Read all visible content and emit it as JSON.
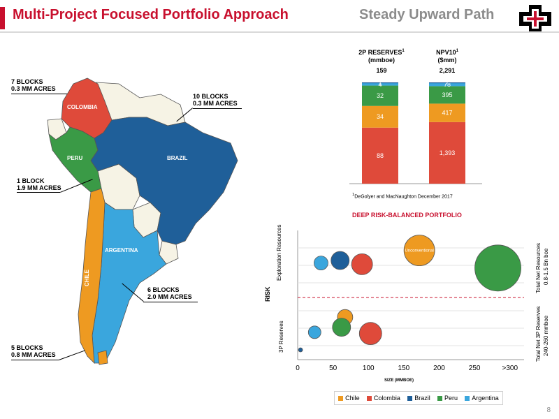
{
  "header": {
    "title": "Multi-Project Focused Portfolio Approach",
    "subtitle": "Steady Upward Path"
  },
  "colors": {
    "chile": "#ee9a21",
    "colombia": "#df4a3a",
    "brazil": "#1f5f99",
    "peru": "#3a9a46",
    "argentina": "#3aa6dd",
    "other": "#f6f3e5",
    "accent": "#c8102e"
  },
  "map": {
    "countries": {
      "colombia": "COLOMBIA",
      "peru": "PERU",
      "brazil": "BRAZIL",
      "argentina": "ARGENTINA",
      "chile": "CHILE"
    },
    "callouts": [
      {
        "blocks": "7 BLOCKS",
        "acres": "0.3 MM ACRES"
      },
      {
        "blocks": "10 BLOCKS",
        "acres": "0.3 MM ACRES"
      },
      {
        "blocks": "1 BLOCK",
        "acres": "1.9 MM ACRES"
      },
      {
        "blocks": "6 BLOCKS",
        "acres": "2.0 MM ACRES"
      },
      {
        "blocks": "5 BLOCKS",
        "acres": "0.8 MM ACRES"
      }
    ]
  },
  "stacks": {
    "reserves": {
      "title1": "2P RESERVES",
      "sup": "1",
      "title2": "(mmboe)",
      "total": "159"
    },
    "npv": {
      "title1": "NPV10",
      "sup": "1",
      "title2": "($mm)",
      "total": "2,291"
    },
    "footnote_sup": "1",
    "footnote": "DeGolyer and MacNaughton December 2017"
  },
  "chart_data": [
    {
      "type": "bar",
      "stacked": true,
      "categories": [
        "2P RESERVES (mmboe)",
        "NPV10 ($mm)"
      ],
      "series": [
        {
          "name": "Colombia",
          "color": "#df4a3a",
          "values": [
            88,
            1393
          ],
          "labels": [
            "88",
            "1,393"
          ]
        },
        {
          "name": "Chile",
          "color": "#ee9a21",
          "values": [
            34,
            417
          ],
          "labels": [
            "34",
            "417"
          ]
        },
        {
          "name": "Peru",
          "color": "#3a9a46",
          "values": [
            32,
            395
          ],
          "labels": [
            "32",
            "395"
          ]
        },
        {
          "name": "Argentina",
          "color": "#3aa6dd",
          "values": [
            4,
            78
          ],
          "labels": [
            "4",
            "78"
          ]
        },
        {
          "name": "Brazil",
          "color": "#1f5f99",
          "values": [
            1,
            7
          ],
          "labels": [
            "1",
            "7"
          ]
        }
      ],
      "totals": [
        "159",
        "2,291"
      ]
    },
    {
      "type": "scatter",
      "title": "DEEP RISK-BALANCED PORTFOLIO",
      "xlabel": "SIZE (MMBOE)",
      "ylabel": "RISK",
      "xticks": [
        "0",
        "50",
        "100",
        "150",
        "200",
        "250",
        ">300"
      ],
      "xlim": [
        0,
        320
      ],
      "grid": true,
      "legend": [
        "Chile",
        "Colombia",
        "Brazil",
        "Peru",
        "Argentina"
      ],
      "groups": {
        "exploration": "Exploration Resources",
        "reserves": "3P Reserves",
        "right_top_1": "Total Net Resources",
        "right_top_2": "0.8-1.5 Bn boe",
        "right_bot_1": "Total Net 3P Reserves",
        "right_bot_2": "240-260 mmboe"
      },
      "bubble_label": "Unconventional",
      "points": [
        {
          "series": "Argentina",
          "group": "exploration",
          "x": 33,
          "y": 1.3,
          "r": 10
        },
        {
          "series": "Brazil",
          "group": "exploration",
          "x": 60,
          "y": 1.5,
          "r": 13
        },
        {
          "series": "Colombia",
          "group": "exploration",
          "x": 91,
          "y": 1.2,
          "r": 15
        },
        {
          "series": "Chile",
          "group": "exploration",
          "x": 172,
          "y": 2.3,
          "r": 22,
          "label": true
        },
        {
          "series": "Peru",
          "group": "exploration",
          "x": 283,
          "y": 0.9,
          "r": 33
        },
        {
          "series": "Chile",
          "group": "reserves",
          "x": 67,
          "y": 2.1,
          "r": 11
        },
        {
          "series": "Peru",
          "group": "reserves",
          "x": 62,
          "y": 1.3,
          "r": 13
        },
        {
          "series": "Argentina",
          "group": "reserves",
          "x": 24,
          "y": 0.9,
          "r": 9
        },
        {
          "series": "Colombia",
          "group": "reserves",
          "x": 103,
          "y": 0.8,
          "r": 16
        },
        {
          "series": "Brazil",
          "group": "reserves",
          "x": 4,
          "y": -0.5,
          "r": 3
        }
      ]
    }
  ],
  "page_number": "8"
}
